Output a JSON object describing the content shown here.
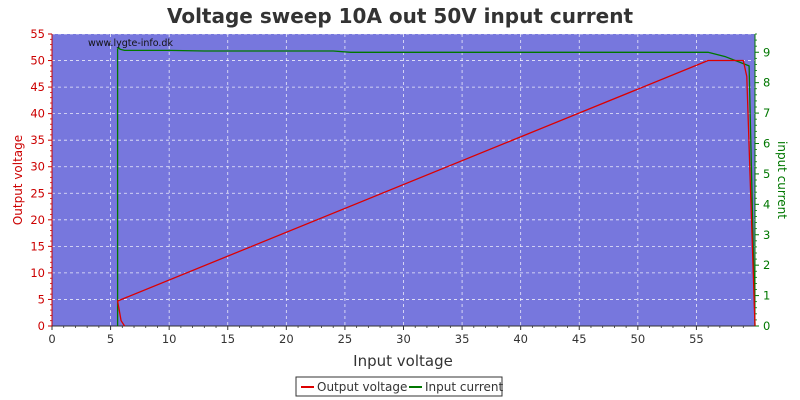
{
  "chart_data": {
    "type": "line",
    "title": "Voltage sweep 10A out 50V input current",
    "xlabel": "Input voltage",
    "ylabel_left": "Output voltage",
    "ylabel_right": "input current",
    "watermark": "www.lygte-info.dk",
    "xlim": [
      0,
      60
    ],
    "ylim_left": [
      0,
      55
    ],
    "ylim_right": [
      0,
      9.6
    ],
    "x_ticks": [
      0,
      5,
      10,
      15,
      20,
      25,
      30,
      35,
      40,
      45,
      50,
      55
    ],
    "y_left_ticks": [
      0,
      5,
      10,
      15,
      20,
      25,
      30,
      35,
      40,
      45,
      50,
      55
    ],
    "y_right_ticks": [
      0,
      1,
      2,
      3,
      4,
      5,
      6,
      7,
      8,
      9
    ],
    "grid": true,
    "legend_position": "bottom-center",
    "colors": {
      "plot_background": "#7777dd",
      "grid": "#ffffff",
      "output_voltage": "#dd0000",
      "input_current": "#007700",
      "left_axis": "#cc0000",
      "right_axis": "#007700",
      "bottom_axis": "#333333"
    },
    "series": [
      {
        "name": "Output voltage",
        "axis": "left",
        "x": [
          6.2,
          5.9,
          5.6,
          56.0,
          59.0,
          59.3,
          60.0
        ],
        "y": [
          0.0,
          1.0,
          4.7,
          50.0,
          50.0,
          47.0,
          0.0
        ]
      },
      {
        "name": "Input current",
        "axis": "right",
        "x": [
          5.6,
          5.6,
          5.7,
          5.8,
          6.2,
          10.0,
          13.0,
          24.0,
          25.5,
          56.0,
          57.5,
          59.5,
          60.0
        ],
        "y": [
          0.0,
          9.1,
          9.15,
          9.1,
          9.06,
          9.06,
          9.04,
          9.04,
          9.0,
          9.0,
          8.85,
          8.55,
          0.0
        ]
      }
    ]
  }
}
